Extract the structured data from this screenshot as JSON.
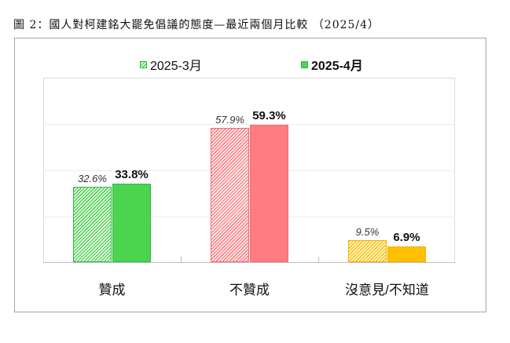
{
  "title": "圖 2：國人對柯建銘大罷免倡議的態度—最近兩個月比較 （2025/4）",
  "legend": [
    {
      "label": "2025-3月",
      "style": "hatched"
    },
    {
      "label": "2025-4月",
      "style": "solid"
    }
  ],
  "colors": {
    "green": "#4cd44f",
    "green_border": "#2fb84a",
    "red": "#ff7c80",
    "red_border": "#f06a70",
    "yellow": "#ffc000",
    "yellow_border": "#f0b000",
    "grid": "#ececec",
    "axis": "#bfbfbf"
  },
  "chart_data": {
    "type": "bar",
    "title": "圖 2：國人對柯建銘大罷免倡議的態度—最近兩個月比較 （2025/4）",
    "categories": [
      "贊成",
      "不贊成",
      "沒意見/不知道"
    ],
    "series": [
      {
        "name": "2025-3月",
        "values": [
          32.6,
          57.9,
          9.5
        ],
        "labels": [
          "32.6%",
          "57.9%",
          "9.5%"
        ],
        "pattern": "hatched"
      },
      {
        "name": "2025-4月",
        "values": [
          33.8,
          59.3,
          6.9
        ],
        "labels": [
          "33.8%",
          "59.3%",
          "6.9%"
        ],
        "pattern": "solid"
      }
    ],
    "category_colors": [
      "#4cd44f",
      "#ff7c80",
      "#ffc000"
    ],
    "xlabel": "",
    "ylabel": "",
    "ylim": [
      0,
      80
    ],
    "y_gridlines": [
      20,
      40,
      60
    ],
    "y_tick_labels_visible": false,
    "grid": true,
    "legend_position": "top"
  }
}
